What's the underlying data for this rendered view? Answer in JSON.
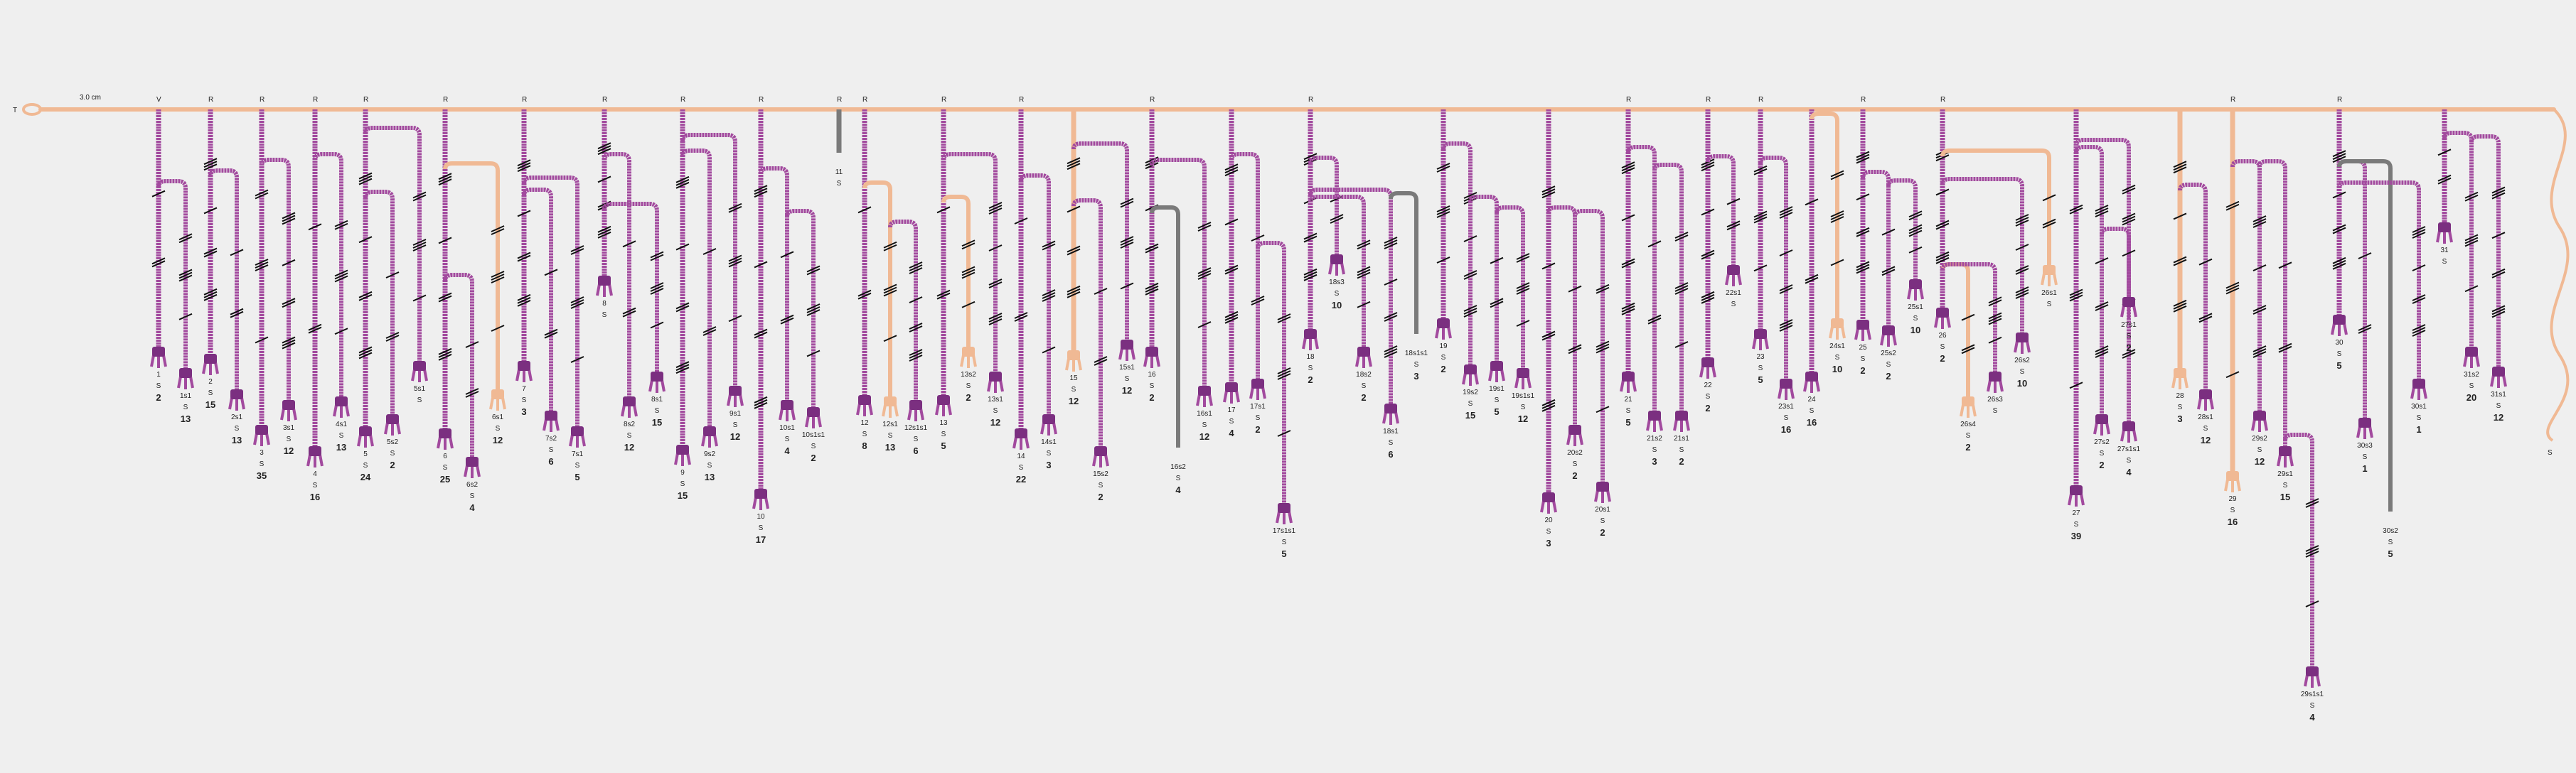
{
  "primary": {
    "start_label": "T",
    "scale_label": "3.0 cm",
    "end_label": "S"
  },
  "colors": {
    "background": "#efefef",
    "primary_cord": "#f0b994",
    "pendant": "#a24a9e",
    "pendant_dark": "#7b2f80",
    "light_pendant": "#f0b994",
    "grey_pendant": "#7a7a7a",
    "knot": "#111111"
  },
  "top_marks": [
    "V",
    "R",
    "R",
    "R",
    "R",
    "R",
    "R",
    "R",
    "R",
    "R",
    "R",
    "R",
    "R",
    "R",
    "R",
    "R",
    "R",
    "R",
    "R",
    "R",
    "R",
    "R",
    "R"
  ],
  "pendants": [
    {
      "label": "1",
      "s": "S",
      "count": "2"
    },
    {
      "label": "1s1",
      "s": "S",
      "count": "13"
    },
    {
      "label": "2",
      "s": "S",
      "count": "15"
    },
    {
      "label": "2s1",
      "s": "S",
      "count": "13"
    },
    {
      "label": "3",
      "s": "S",
      "count": "35"
    },
    {
      "label": "3s1",
      "s": "S",
      "count": "12"
    },
    {
      "label": "4",
      "s": "S",
      "count": "16"
    },
    {
      "label": "4s1",
      "s": "S",
      "count": "13"
    },
    {
      "label": "5",
      "s": "S",
      "count": "24"
    },
    {
      "label": "5s2",
      "s": "S",
      "count": "2"
    },
    {
      "label": "5s1",
      "s": "S",
      "count": ""
    },
    {
      "label": "6",
      "s": "S",
      "count": "25"
    },
    {
      "label": "6s2",
      "s": "S",
      "count": "4"
    },
    {
      "label": "6s1",
      "s": "S",
      "count": "12"
    },
    {
      "label": "7",
      "s": "S",
      "count": "3"
    },
    {
      "label": "7s2",
      "s": "S",
      "count": "6"
    },
    {
      "label": "7s1",
      "s": "S",
      "count": "5"
    },
    {
      "label": "8",
      "s": "S",
      "count": ""
    },
    {
      "label": "8s2",
      "s": "S",
      "count": "12"
    },
    {
      "label": "8s1",
      "s": "S",
      "count": "15"
    },
    {
      "label": "9",
      "s": "S",
      "count": "15"
    },
    {
      "label": "9s2",
      "s": "S",
      "count": "13"
    },
    {
      "label": "9s1",
      "s": "S",
      "count": "12"
    },
    {
      "label": "10",
      "s": "S",
      "count": "17"
    },
    {
      "label": "10s1",
      "s": "S",
      "count": "4"
    },
    {
      "label": "10s1s1",
      "s": "S",
      "count": "2"
    },
    {
      "label": "11",
      "s": "S",
      "count": ""
    },
    {
      "label": "12",
      "s": "S",
      "count": "8"
    },
    {
      "label": "12s1",
      "s": "S",
      "count": "13"
    },
    {
      "label": "12s1s1",
      "s": "S",
      "count": "6"
    },
    {
      "label": "13",
      "s": "S",
      "count": "5"
    },
    {
      "label": "13s2",
      "s": "S",
      "count": "2"
    },
    {
      "label": "13s1",
      "s": "S",
      "count": "12"
    },
    {
      "label": "14",
      "s": "S",
      "count": "22"
    },
    {
      "label": "14s1",
      "s": "S",
      "count": "3"
    },
    {
      "label": "15",
      "s": "S",
      "count": "12"
    },
    {
      "label": "15s2",
      "s": "S",
      "count": "2"
    },
    {
      "label": "15s1",
      "s": "S",
      "count": "12"
    },
    {
      "label": "16",
      "s": "S",
      "count": "2"
    },
    {
      "label": "16s2",
      "s": "S",
      "count": "4"
    },
    {
      "label": "16s1",
      "s": "S",
      "count": "12"
    },
    {
      "label": "17",
      "s": "S",
      "count": "4"
    },
    {
      "label": "17s1",
      "s": "S",
      "count": "2"
    },
    {
      "label": "17s1s1",
      "s": "S",
      "count": "5"
    },
    {
      "label": "18",
      "s": "S",
      "count": "2"
    },
    {
      "label": "18s3",
      "s": "S",
      "count": "10"
    },
    {
      "label": "18s2",
      "s": "S",
      "count": "2"
    },
    {
      "label": "18s1",
      "s": "S",
      "count": "6"
    },
    {
      "label": "18s1s1",
      "s": "S",
      "count": "3"
    },
    {
      "label": "19",
      "s": "S",
      "count": "2"
    },
    {
      "label": "19s2",
      "s": "S",
      "count": "15"
    },
    {
      "label": "19s1",
      "s": "S",
      "count": "5"
    },
    {
      "label": "19s1s1",
      "s": "S",
      "count": "12"
    },
    {
      "label": "20",
      "s": "S",
      "count": "3"
    },
    {
      "label": "20s2",
      "s": "S",
      "count": "2"
    },
    {
      "label": "20s1",
      "s": "S",
      "count": "2"
    },
    {
      "label": "21",
      "s": "S",
      "count": "5"
    },
    {
      "label": "21s2",
      "s": "S",
      "count": "3"
    },
    {
      "label": "21s1",
      "s": "S",
      "count": "2"
    },
    {
      "label": "22",
      "s": "S",
      "count": "2"
    },
    {
      "label": "22s1",
      "s": "S",
      "count": ""
    },
    {
      "label": "23",
      "s": "S",
      "count": "5"
    },
    {
      "label": "23s1",
      "s": "S",
      "count": "16"
    },
    {
      "label": "24",
      "s": "S",
      "count": "16"
    },
    {
      "label": "24s1",
      "s": "S",
      "count": "10"
    },
    {
      "label": "25",
      "s": "S",
      "count": "2"
    },
    {
      "label": "25s2",
      "s": "S",
      "count": "2"
    },
    {
      "label": "25s1",
      "s": "S",
      "count": "10"
    },
    {
      "label": "26",
      "s": "S",
      "count": "2"
    },
    {
      "label": "26s4",
      "s": "S",
      "count": "2"
    },
    {
      "label": "26s3",
      "s": "S",
      "count": ""
    },
    {
      "label": "26s2",
      "s": "S",
      "count": "10"
    },
    {
      "label": "26s1",
      "s": "S",
      "count": ""
    },
    {
      "label": "27",
      "s": "S",
      "count": "39"
    },
    {
      "label": "27s2",
      "s": "S",
      "count": "2"
    },
    {
      "label": "27s1s1",
      "s": "S",
      "count": "4"
    },
    {
      "label": "27s1",
      "s": "S",
      "count": "2"
    },
    {
      "label": "28",
      "s": "S",
      "count": "3"
    },
    {
      "label": "28s1",
      "s": "S",
      "count": "12"
    },
    {
      "label": "29",
      "s": "S",
      "count": "16"
    },
    {
      "label": "29s2",
      "s": "S",
      "count": "12"
    },
    {
      "label": "29s1",
      "s": "S",
      "count": "15"
    },
    {
      "label": "29s1s1",
      "s": "S",
      "count": "4"
    },
    {
      "label": "30",
      "s": "S",
      "count": "5"
    },
    {
      "label": "30s3",
      "s": "S",
      "count": "1"
    },
    {
      "label": "30s2",
      "s": "S",
      "count": "5"
    },
    {
      "label": "30s1",
      "s": "S",
      "count": "1"
    },
    {
      "label": "31",
      "s": "S",
      "count": ""
    },
    {
      "label": "31s2",
      "s": "S",
      "count": "20"
    },
    {
      "label": "31s1",
      "s": "S",
      "count": "12"
    }
  ]
}
